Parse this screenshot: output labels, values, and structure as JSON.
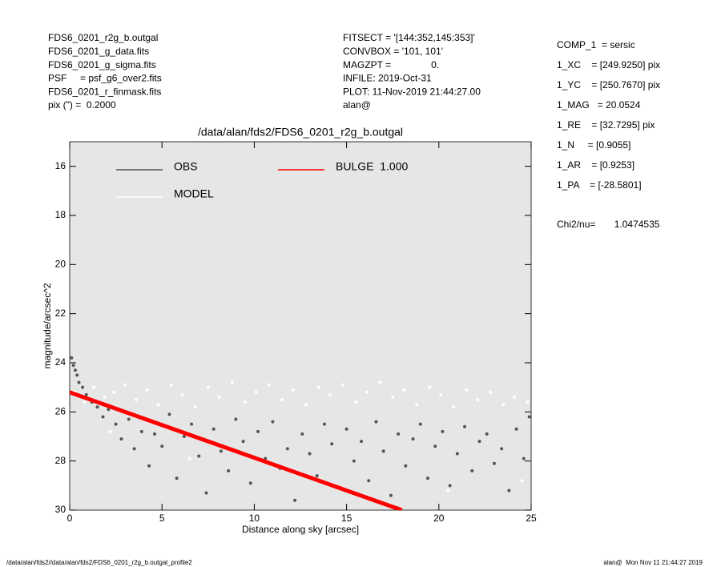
{
  "header": {
    "left": [
      "FDS6_0201_r2g_b.outgal",
      "FDS6_0201_g_data.fits",
      "FDS6_0201_g_sigma.fits",
      "PSF     = psf_g6_over2.fits",
      "FDS6_0201_r_finmask.fits",
      "pix (\") =  0.2000"
    ],
    "middle": [
      "FITSECT = '[144:352,145:353]'",
      "CONVBOX = '101, 101'",
      "MAGZPT =               0.",
      "INFILE: 2019-Oct-31",
      "PLOT: 11-Nov-2019 21:44:27.00",
      "alan@"
    ],
    "right": [
      "COMP_1  = sersic",
      "1_XC    = [249.9250] pix",
      "1_YC    = [250.7670] pix",
      "1_MAG   = 20.0524",
      "1_RE    = [32.7295] pix",
      "1_N     = [0.9055]",
      "1_AR    = [0.9253]",
      "1_PA    = [-28.5801]"
    ],
    "chi2": "Chi2/nu=       1.0474535"
  },
  "footer": {
    "left": "/data/alan/fds2//data/alan/fds2/FDS6_0201_r2g_b.outgal_profile2",
    "right": "alan@  Mon Nov 11 21:44:27 2019"
  },
  "chart_data": {
    "type": "scatter",
    "title": "/data/alan/fds2/FDS6_0201_r2g_b.outgal",
    "xlabel": "Distance along sky [arcsec]",
    "ylabel": "magnitude/arcsec^2",
    "xlim": [
      0,
      25
    ],
    "xticks": [
      0,
      5,
      10,
      15,
      20,
      25
    ],
    "ylim": [
      30,
      15
    ],
    "yticks": [
      16,
      18,
      20,
      22,
      24,
      26,
      28,
      30
    ],
    "series": [
      {
        "name": "OBS",
        "color": "#555555",
        "mode": "points",
        "x": [
          0.1,
          0.2,
          0.3,
          0.4,
          0.5,
          0.7,
          0.9,
          1.2,
          1.5,
          1.8,
          2.1,
          2.5,
          2.8,
          3.2,
          3.5,
          3.9,
          4.3,
          4.6,
          5.0,
          5.4,
          5.8,
          6.2,
          6.6,
          7.0,
          7.4,
          7.8,
          8.2,
          8.6,
          9.0,
          9.4,
          9.8,
          10.2,
          10.6,
          11.0,
          11.4,
          11.8,
          12.2,
          12.6,
          13.0,
          13.4,
          13.8,
          14.2,
          14.6,
          15.0,
          15.4,
          15.8,
          16.2,
          16.6,
          17.0,
          17.4,
          17.8,
          18.2,
          18.6,
          19.0,
          19.4,
          19.8,
          20.2,
          20.6,
          21.0,
          21.4,
          21.8,
          22.2,
          22.6,
          23.0,
          23.4,
          23.8,
          24.2,
          24.6,
          24.9
        ],
        "values": [
          23.8,
          24.1,
          24.3,
          24.5,
          24.8,
          25.0,
          25.3,
          25.6,
          25.8,
          26.2,
          25.9,
          26.5,
          27.1,
          26.3,
          27.5,
          26.8,
          28.2,
          26.9,
          27.4,
          26.1,
          28.7,
          27.0,
          26.5,
          27.8,
          29.3,
          26.7,
          27.6,
          28.4,
          26.3,
          27.2,
          28.9,
          26.8,
          27.9,
          26.4,
          28.3,
          27.5,
          29.6,
          26.9,
          27.7,
          28.6,
          26.5,
          27.3,
          29.1,
          26.7,
          28.0,
          27.2,
          28.8,
          26.4,
          27.6,
          29.4,
          26.9,
          28.2,
          27.1,
          26.5,
          28.7,
          27.4,
          26.8,
          29.0,
          27.7,
          26.6,
          28.4,
          27.2,
          26.9,
          28.1,
          27.5,
          29.2,
          26.7,
          27.9,
          26.2
        ]
      },
      {
        "name": "MODEL",
        "color": "#ffffff",
        "mode": "points",
        "x": [
          0.3,
          0.8,
          1.3,
          1.9,
          2.4,
          3.0,
          3.6,
          4.2,
          4.8,
          5.5,
          6.1,
          6.8,
          7.5,
          8.1,
          8.8,
          9.5,
          10.1,
          10.8,
          11.5,
          12.1,
          12.8,
          13.5,
          14.1,
          14.8,
          15.5,
          16.1,
          16.8,
          17.5,
          18.1,
          18.8,
          19.5,
          20.1,
          20.8,
          21.5,
          22.1,
          22.8,
          23.5,
          24.1,
          24.8,
          2.2,
          6.5,
          12.5,
          20.5,
          24.5
        ],
        "values": [
          25.2,
          25.6,
          25.0,
          25.4,
          25.2,
          24.9,
          25.5,
          25.1,
          25.7,
          24.9,
          25.3,
          25.8,
          25.0,
          25.4,
          24.8,
          25.6,
          25.2,
          24.9,
          25.5,
          25.1,
          25.7,
          25.0,
          25.3,
          24.9,
          25.6,
          25.2,
          24.8,
          25.4,
          25.1,
          25.7,
          25.0,
          25.3,
          25.8,
          25.1,
          25.5,
          25.2,
          25.7,
          25.4,
          25.6,
          26.8,
          27.9,
          28.5,
          29.2,
          28.8
        ]
      },
      {
        "name": "BULGE  1.000",
        "color": "#ff0000",
        "mode": "line",
        "x": [
          0,
          3,
          6,
          9,
          12,
          15,
          18
        ],
        "values": [
          25.2,
          26.0,
          26.8,
          27.6,
          28.4,
          29.2,
          30.0
        ]
      }
    ]
  }
}
